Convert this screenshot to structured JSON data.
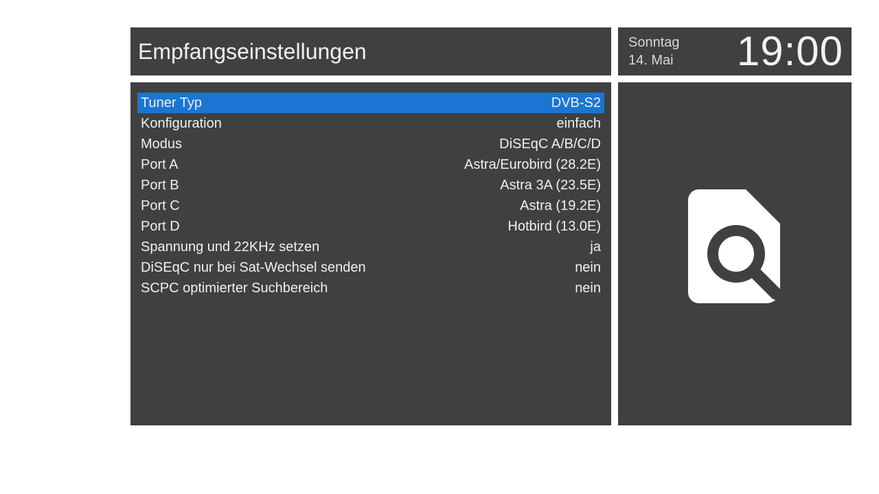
{
  "header": {
    "title": "Empfangseinstellungen"
  },
  "clock": {
    "day": "Sonntag",
    "date": "14. Mai",
    "time": "19:00"
  },
  "menu": {
    "selected_index": 0,
    "items": [
      {
        "label": "Tuner Typ",
        "value": "DVB-S2"
      },
      {
        "label": "Konfiguration",
        "value": "einfach"
      },
      {
        "label": "Modus",
        "value": "DiSEqC A/B/C/D"
      },
      {
        "label": "Port A",
        "value": "Astra/Eurobird (28.2E)"
      },
      {
        "label": "Port B",
        "value": "Astra 3A (23.5E)"
      },
      {
        "label": "Port C",
        "value": "Astra (19.2E)"
      },
      {
        "label": "Port D",
        "value": "Hotbird (13.0E)"
      },
      {
        "label": "Spannung und 22KHz setzen",
        "value": "ja"
      },
      {
        "label": "DiSEqC nur bei Sat-Wechsel senden",
        "value": "nein"
      },
      {
        "label": "SCPC optimierter Suchbereich",
        "value": "nein"
      }
    ]
  },
  "preview": {
    "icon": "file-search-icon"
  },
  "colors": {
    "panel_bg": "#404040",
    "highlight": "#1a76d2",
    "text": "#f0f0f0",
    "icon": "#ffffff"
  }
}
